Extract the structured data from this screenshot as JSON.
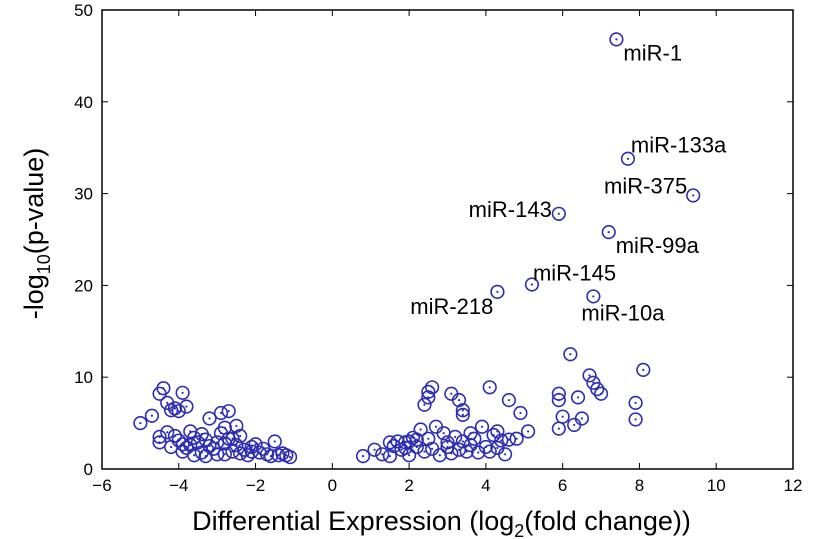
{
  "chart_data": {
    "type": "scatter",
    "title": "",
    "xlabel": {
      "pre": "Differential Expression (log",
      "sub": "2",
      "post": "(fold change))"
    },
    "ylabel": {
      "pre": "-log",
      "sub": "10",
      "post": "(p-value)"
    },
    "xlim": [
      -6,
      12
    ],
    "ylim": [
      0,
      50
    ],
    "xticks": [
      -6,
      -4,
      -2,
      0,
      2,
      4,
      6,
      8,
      10,
      12
    ],
    "yticks": [
      0,
      10,
      20,
      30,
      40,
      50
    ],
    "xtick_labels": [
      "−6",
      "−4",
      "−2",
      "0",
      "2",
      "4",
      "6",
      "8",
      "10",
      "12"
    ],
    "ytick_labels": [
      "0",
      "10",
      "20",
      "30",
      "40",
      "50"
    ],
    "marker_color": "#2d2db4",
    "grid": false,
    "series": [
      {
        "points": [
          [
            -5.0,
            5.0
          ],
          [
            -4.7,
            5.8
          ],
          [
            -4.5,
            8.2
          ],
          [
            -4.4,
            8.8
          ],
          [
            -4.3,
            7.2
          ],
          [
            -4.2,
            6.4
          ],
          [
            -4.1,
            6.6
          ],
          [
            -4.0,
            6.3
          ],
          [
            -3.9,
            8.3
          ],
          [
            -3.8,
            6.8
          ],
          [
            -4.5,
            3.5
          ],
          [
            -4.5,
            2.9
          ],
          [
            -4.3,
            4.0
          ],
          [
            -4.1,
            3.6
          ],
          [
            -4.0,
            3.1
          ],
          [
            -3.9,
            2.7
          ],
          [
            -3.8,
            2.3
          ],
          [
            -3.7,
            4.1
          ],
          [
            -3.6,
            3.4
          ],
          [
            -3.5,
            2.9
          ],
          [
            -3.4,
            1.8
          ],
          [
            -3.3,
            3.2
          ],
          [
            -3.2,
            2.5
          ],
          [
            -3.1,
            2.2
          ],
          [
            -3.0,
            1.6
          ],
          [
            -2.9,
            3.9
          ],
          [
            -2.8,
            2.8
          ],
          [
            -2.7,
            3.3
          ],
          [
            -2.6,
            1.9
          ],
          [
            -2.5,
            2.6
          ],
          [
            -2.4,
            3.6
          ],
          [
            -2.3,
            2.1
          ],
          [
            -2.2,
            1.5
          ],
          [
            -2.1,
            2.4
          ],
          [
            -2.0,
            2.7
          ],
          [
            -1.9,
            1.8
          ],
          [
            -1.8,
            2.2
          ],
          [
            -1.7,
            1.6
          ],
          [
            -1.6,
            1.4
          ],
          [
            -1.5,
            3.0
          ],
          [
            -1.4,
            1.5
          ],
          [
            -1.3,
            1.7
          ],
          [
            -1.2,
            1.5
          ],
          [
            -1.1,
            1.3
          ],
          [
            -3.6,
            1.5
          ],
          [
            -3.0,
            2.9
          ],
          [
            -2.6,
            3.3
          ],
          [
            -3.9,
            1.9
          ],
          [
            -3.7,
            2.6
          ],
          [
            -4.2,
            2.4
          ],
          [
            -3.2,
            5.5
          ],
          [
            -2.9,
            6.1
          ],
          [
            -2.8,
            4.5
          ],
          [
            -2.7,
            6.3
          ],
          [
            -2.5,
            4.7
          ],
          [
            -3.4,
            3.8
          ],
          [
            -2.1,
            1.9
          ],
          [
            -2.4,
            1.7
          ],
          [
            -3.3,
            1.4
          ],
          [
            -2.8,
            1.6
          ],
          [
            0.8,
            1.4
          ],
          [
            1.1,
            2.1
          ],
          [
            1.3,
            1.6
          ],
          [
            1.5,
            1.4
          ],
          [
            1.6,
            2.5
          ],
          [
            1.7,
            3.0
          ],
          [
            1.8,
            2.1
          ],
          [
            1.9,
            2.9
          ],
          [
            2.0,
            1.5
          ],
          [
            2.1,
            3.4
          ],
          [
            2.2,
            2.4
          ],
          [
            2.3,
            4.3
          ],
          [
            2.4,
            1.9
          ],
          [
            2.5,
            3.3
          ],
          [
            2.6,
            2.2
          ],
          [
            2.7,
            4.6
          ],
          [
            2.8,
            1.5
          ],
          [
            2.9,
            3.9
          ],
          [
            3.0,
            2.4
          ],
          [
            3.1,
            1.7
          ],
          [
            3.2,
            3.5
          ],
          [
            3.3,
            2.1
          ],
          [
            3.4,
            3.0
          ],
          [
            3.5,
            1.9
          ],
          [
            3.6,
            2.6
          ],
          [
            3.7,
            3.3
          ],
          [
            3.8,
            1.8
          ],
          [
            3.9,
            4.6
          ],
          [
            4.0,
            2.4
          ],
          [
            4.1,
            1.9
          ],
          [
            4.2,
            3.7
          ],
          [
            4.3,
            2.3
          ],
          [
            4.4,
            3.1
          ],
          [
            4.5,
            1.6
          ],
          [
            4.6,
            3.2
          ],
          [
            2.4,
            7.0
          ],
          [
            2.5,
            7.8
          ],
          [
            2.6,
            8.9
          ],
          [
            2.5,
            8.4
          ],
          [
            3.1,
            8.2
          ],
          [
            3.3,
            7.5
          ],
          [
            3.4,
            6.4
          ],
          [
            3.4,
            5.9
          ],
          [
            4.1,
            8.9
          ],
          [
            4.6,
            7.5
          ],
          [
            4.9,
            6.1
          ],
          [
            5.1,
            4.1
          ],
          [
            4.8,
            3.3
          ],
          [
            2.0,
            3.0
          ],
          [
            1.5,
            2.9
          ],
          [
            3.6,
            3.9
          ],
          [
            2.2,
            3.2
          ],
          [
            1.9,
            2.3
          ],
          [
            3.0,
            2.9
          ],
          [
            4.3,
            4.1
          ],
          [
            5.9,
            4.4
          ],
          [
            5.9,
            8.2
          ],
          [
            5.9,
            7.5
          ],
          [
            6.0,
            5.7
          ],
          [
            6.2,
            12.5
          ],
          [
            6.3,
            4.8
          ],
          [
            6.5,
            5.5
          ],
          [
            6.7,
            10.2
          ],
          [
            6.8,
            9.4
          ],
          [
            6.9,
            8.7
          ],
          [
            7.0,
            8.2
          ],
          [
            7.9,
            7.2
          ],
          [
            7.9,
            5.4
          ],
          [
            8.1,
            10.8
          ],
          [
            6.4,
            7.8
          ],
          [
            4.3,
            19.3
          ],
          [
            5.2,
            20.1
          ],
          [
            5.9,
            27.8
          ],
          [
            6.8,
            18.8
          ],
          [
            7.2,
            25.8
          ],
          [
            7.7,
            33.8
          ],
          [
            7.4,
            46.8
          ],
          [
            9.4,
            29.8
          ]
        ]
      }
    ],
    "annotations": [
      {
        "text": "miR-1",
        "x": 7.4,
        "y": 46.8
      },
      {
        "text": "miR-133a",
        "x": 7.7,
        "y": 33.8
      },
      {
        "text": "miR-375",
        "x": 9.4,
        "y": 29.8
      },
      {
        "text": "miR-143",
        "x": 5.9,
        "y": 27.8
      },
      {
        "text": "miR-99a",
        "x": 7.2,
        "y": 25.8
      },
      {
        "text": "miR-145",
        "x": 5.2,
        "y": 20.1
      },
      {
        "text": "miR-218",
        "x": 4.3,
        "y": 19.3
      },
      {
        "text": "miR-10a",
        "x": 6.8,
        "y": 18.8
      }
    ]
  }
}
